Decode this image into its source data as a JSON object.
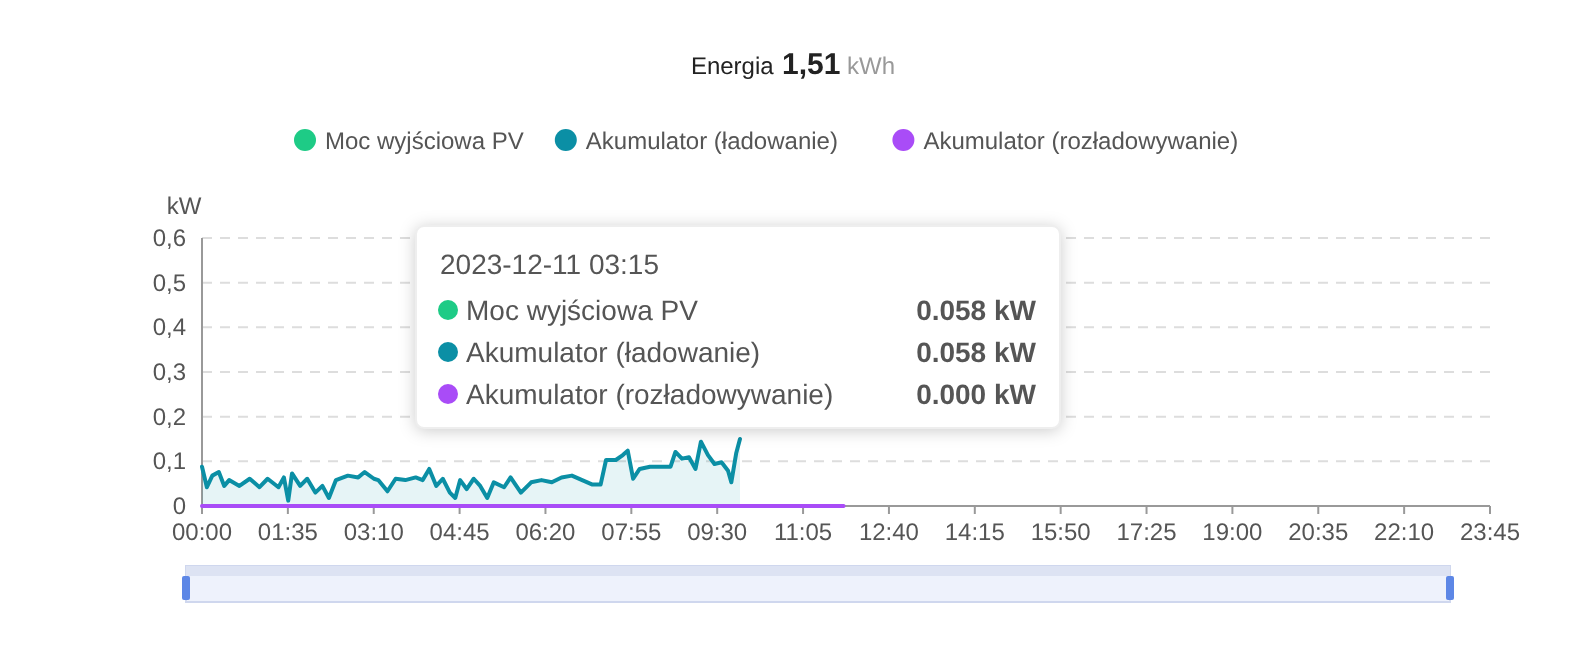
{
  "chart_data": {
    "type": "line",
    "title": "Energia 1,51 kWh",
    "ylabel": "kW",
    "legend": "top",
    "grid": "y",
    "marker": "none",
    "line_style": "solid",
    "xlim": [
      0,
      23.75
    ],
    "xticks": [
      {
        "value": 0,
        "label": "00:00"
      },
      {
        "value": 1.5833,
        "label": "01:35"
      },
      {
        "value": 3.1667,
        "label": "03:10"
      },
      {
        "value": 4.75,
        "label": "04:45"
      },
      {
        "value": 6.3333,
        "label": "06:20"
      },
      {
        "value": 7.9167,
        "label": "07:55"
      },
      {
        "value": 9.5,
        "label": "09:30"
      },
      {
        "value": 11.0833,
        "label": "11:05"
      },
      {
        "value": 12.6667,
        "label": "12:40"
      },
      {
        "value": 14.25,
        "label": "14:15"
      },
      {
        "value": 15.8333,
        "label": "15:50"
      },
      {
        "value": 17.4167,
        "label": "17:25"
      },
      {
        "value": 19,
        "label": "19:00"
      },
      {
        "value": 20.5833,
        "label": "20:35"
      },
      {
        "value": 22.1667,
        "label": "22:10"
      },
      {
        "value": 23.75,
        "label": "23:45"
      }
    ],
    "ylim": [
      0,
      0.6
    ],
    "yticks": [
      0,
      {
        "value": 0.1,
        "label": "0,1"
      },
      {
        "value": 0.2,
        "label": "0,2"
      },
      {
        "value": 0.3,
        "label": "0,3"
      },
      {
        "value": 0.4,
        "label": "0,4"
      },
      {
        "value": 0.5,
        "label": "0,5"
      },
      {
        "value": 0.6,
        "label": "0,6"
      }
    ],
    "annotations": [
      "2023-12-11 03:15",
      "0.058 kW",
      "0.058 kW",
      "0.000 kW"
    ],
    "series": [
      {
        "name": "Moc wyjściowa PV",
        "color": "#1ecb86"
      },
      {
        "name": "Akumulator (ładowanie)",
        "type": "area",
        "color": "#0b8fa5",
        "x": [
          0,
          0.09,
          0.19,
          0.31,
          0.41,
          0.5,
          0.69,
          0.88,
          1.06,
          1.21,
          1.41,
          1.51,
          1.59,
          1.66,
          1.81,
          1.94,
          2.09,
          2.22,
          2.34,
          2.47,
          2.69,
          2.88,
          3,
          3.17,
          3.25,
          3.42,
          3.57,
          3.75,
          3.94,
          4.07,
          4.19,
          4.32,
          4.44,
          4.57,
          4.67,
          4.76,
          4.88,
          5.01,
          5.13,
          5.26,
          5.38,
          5.57,
          5.69,
          5.88,
          6.07,
          6.26,
          6.45,
          6.63,
          6.82,
          7.01,
          7.2,
          7.35,
          7.45,
          7.63,
          7.76,
          7.85,
          7.95,
          8.07,
          8.26,
          8.45,
          8.64,
          8.73,
          8.85,
          8.98,
          9.1,
          9.2,
          9.33,
          9.45,
          9.58,
          9.7,
          9.76,
          9.85,
          9.92
        ],
        "values": [
          0.088,
          0.042,
          0.068,
          0.076,
          0.045,
          0.058,
          0.045,
          0.061,
          0.042,
          0.061,
          0.042,
          0.064,
          0.012,
          0.073,
          0.045,
          0.061,
          0.03,
          0.045,
          0.018,
          0.058,
          0.068,
          0.064,
          0.076,
          0.061,
          0.058,
          0.033,
          0.061,
          0.058,
          0.064,
          0.058,
          0.083,
          0.045,
          0.061,
          0.03,
          0.018,
          0.058,
          0.038,
          0.061,
          0.045,
          0.018,
          0.053,
          0.042,
          0.064,
          0.03,
          0.053,
          0.058,
          0.053,
          0.064,
          0.068,
          0.058,
          0.048,
          0.048,
          0.103,
          0.103,
          0.114,
          0.124,
          0.061,
          0.083,
          0.088,
          0.088,
          0.088,
          0.121,
          0.106,
          0.109,
          0.083,
          0.144,
          0.114,
          0.094,
          0.098,
          0.079,
          0.053,
          0.118,
          0.15
        ]
      },
      {
        "name": "Akumulator (rozładowywanie)",
        "color": "#a94cf7",
        "x": [
          0,
          11.83
        ],
        "values": [
          0,
          0
        ]
      }
    ]
  }
}
